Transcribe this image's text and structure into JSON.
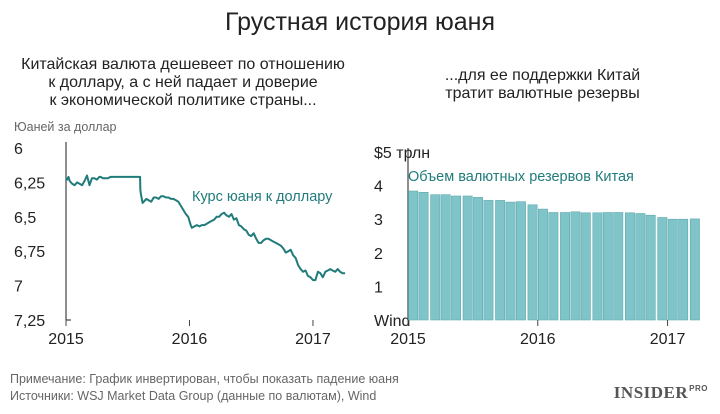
{
  "title": "Грустная история юаня",
  "left": {
    "subtitle_lines": [
      "Китайская валюта дешевеет по отношению",
      "к доллару, а с ней падает и доверие",
      "к экономической политике страны..."
    ]
  },
  "right": {
    "subtitle_lines": [
      "...для ее поддержки Китай",
      "тратит валютные резервы"
    ]
  },
  "footer": {
    "note": "Примечание: График инвертирован, чтобы показать падение юаня",
    "sources": "Источники: WSJ Market Data Group (данные по валютам), Wind"
  },
  "logo": {
    "main": "INSIDER",
    "sup": "PRO"
  },
  "colors": {
    "series": "#207b7b",
    "bars": "#7fc4c8",
    "bar_stroke": "#5fa9ad",
    "axis": "#444444",
    "text": "#222222"
  },
  "chart_data": [
    {
      "type": "line",
      "title": "Китайская валюта дешевеет по отношению к доллару, а с ней падает и доверие к экономической политике страны...",
      "ylabel": "Юаней за доллар",
      "series_label": "Курс юаня к доллару",
      "y_inverted": true,
      "ylim": [
        6,
        7.25
      ],
      "yticks": [
        6,
        6.25,
        6.5,
        6.75,
        7,
        7.25
      ],
      "ytick_labels": [
        "6",
        "6,25",
        "6,5",
        "6,75",
        "7",
        "7,25"
      ],
      "xlim": [
        2015.0,
        2017.3
      ],
      "xticks": [
        2015,
        2016,
        2017
      ],
      "xtick_labels": [
        "2015",
        "2016",
        "2017"
      ],
      "grid": false,
      "series": [
        {
          "name": "Курс юаня к доллару",
          "x": [
            2015.0,
            2015.01,
            2015.02,
            2015.03,
            2015.05,
            2015.07,
            2015.09,
            2015.11,
            2015.13,
            2015.15,
            2015.17,
            2015.19,
            2015.21,
            2015.23,
            2015.25,
            2015.27,
            2015.28,
            2015.3,
            2015.32,
            2015.34,
            2015.36,
            2015.38,
            2015.4,
            2015.42,
            2015.44,
            2015.46,
            2015.48,
            2015.5,
            2015.52,
            2015.54,
            2015.56,
            2015.58,
            2015.6,
            2015.602,
            2015.606,
            2015.62,
            2015.63,
            2015.65,
            2015.67,
            2015.69,
            2015.71,
            2015.73,
            2015.75,
            2015.77,
            2015.79,
            2015.81,
            2015.83,
            2015.85,
            2015.87,
            2015.89,
            2015.91,
            2015.93,
            2015.95,
            2015.97,
            2015.99,
            2016.01,
            2016.02,
            2016.04,
            2016.06,
            2016.08,
            2016.1,
            2016.12,
            2016.14,
            2016.16,
            2016.18,
            2016.2,
            2016.22,
            2016.24,
            2016.26,
            2016.28,
            2016.3,
            2016.32,
            2016.34,
            2016.36,
            2016.38,
            2016.4,
            2016.42,
            2016.44,
            2016.46,
            2016.48,
            2016.5,
            2016.52,
            2016.54,
            2016.56,
            2016.58,
            2016.6,
            2016.62,
            2016.64,
            2016.66,
            2016.68,
            2016.7,
            2016.72,
            2016.74,
            2016.76,
            2016.78,
            2016.8,
            2016.82,
            2016.84,
            2016.86,
            2016.88,
            2016.9,
            2016.92,
            2016.94,
            2016.96,
            2016.98,
            2017.0,
            2017.02,
            2017.04,
            2017.06,
            2017.08,
            2017.1,
            2017.12,
            2017.14,
            2017.16,
            2017.18,
            2017.2,
            2017.22,
            2017.24,
            2017.26
          ],
          "y": [
            6.22,
            6.23,
            6.21,
            6.24,
            6.26,
            6.27,
            6.25,
            6.26,
            6.27,
            6.24,
            6.2,
            6.27,
            6.22,
            6.22,
            6.23,
            6.21,
            6.21,
            6.22,
            6.22,
            6.22,
            6.21,
            6.21,
            6.21,
            6.21,
            6.21,
            6.21,
            6.21,
            6.21,
            6.21,
            6.21,
            6.21,
            6.21,
            6.21,
            6.3,
            6.33,
            6.4,
            6.39,
            6.37,
            6.38,
            6.39,
            6.36,
            6.36,
            6.37,
            6.35,
            6.35,
            6.36,
            6.36,
            6.37,
            6.37,
            6.38,
            6.39,
            6.42,
            6.45,
            6.48,
            6.5,
            6.56,
            6.58,
            6.57,
            6.56,
            6.57,
            6.56,
            6.56,
            6.55,
            6.54,
            6.53,
            6.52,
            6.5,
            6.5,
            6.48,
            6.47,
            6.49,
            6.5,
            6.48,
            6.52,
            6.51,
            6.56,
            6.57,
            6.59,
            6.6,
            6.63,
            6.64,
            6.62,
            6.66,
            6.69,
            6.69,
            6.67,
            6.66,
            6.66,
            6.67,
            6.68,
            6.69,
            6.7,
            6.71,
            6.73,
            6.76,
            6.75,
            6.74,
            6.78,
            6.8,
            6.85,
            6.88,
            6.9,
            6.89,
            6.93,
            6.94,
            6.96,
            6.96,
            6.9,
            6.91,
            6.94,
            6.9,
            6.89,
            6.88,
            6.89,
            6.9,
            6.88,
            6.9,
            6.91,
            6.91
          ]
        }
      ]
    },
    {
      "type": "bar",
      "title": "...для ее поддержки Китай тратит валютные резервы",
      "ylabel": "",
      "series_label": "Объем валютных резервов Китая",
      "ylim": [
        0,
        5
      ],
      "yticks": [
        0,
        1,
        2,
        3,
        4,
        5
      ],
      "ytick_labels": [
        "Wind",
        "1",
        "2",
        "3",
        "4",
        "$5 трлн"
      ],
      "xlim": [
        2015.0,
        2017.25
      ],
      "xticks": [
        2015,
        2016,
        2017
      ],
      "xtick_labels": [
        "2015",
        "2016",
        "2017"
      ],
      "grid": false,
      "x": [
        2015.04,
        2015.12,
        2015.21,
        2015.29,
        2015.37,
        2015.46,
        2015.54,
        2015.62,
        2015.71,
        2015.79,
        2015.87,
        2015.96,
        2016.04,
        2016.12,
        2016.21,
        2016.29,
        2016.37,
        2016.46,
        2016.54,
        2016.62,
        2016.71,
        2016.79,
        2016.87,
        2016.96,
        2017.04,
        2017.12,
        2017.21
      ],
      "series": [
        {
          "name": "Объем валютных резервов Китая",
          "values": [
            3.84,
            3.8,
            3.73,
            3.73,
            3.69,
            3.69,
            3.65,
            3.56,
            3.56,
            3.51,
            3.52,
            3.43,
            3.3,
            3.2,
            3.2,
            3.22,
            3.19,
            3.19,
            3.2,
            3.2,
            3.19,
            3.17,
            3.12,
            3.05,
            3.0,
            3.0,
            3.01
          ]
        }
      ]
    }
  ]
}
